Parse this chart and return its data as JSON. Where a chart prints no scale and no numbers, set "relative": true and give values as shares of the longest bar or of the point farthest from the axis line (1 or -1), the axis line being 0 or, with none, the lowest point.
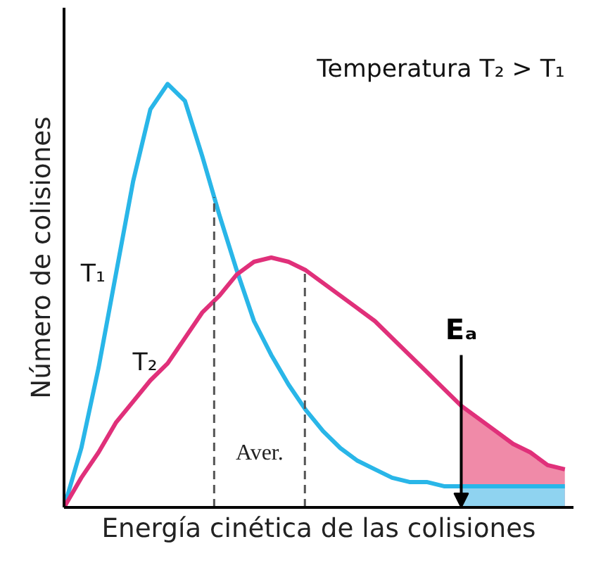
{
  "chart_data": {
    "type": "line",
    "relative": true,
    "xlabel": "Energía cinética de las colisiones",
    "ylabel": "Número de colisiones",
    "categories": [
      null,
      null,
      null,
      null,
      null,
      null,
      null,
      null,
      null,
      null,
      null,
      null,
      null,
      null,
      null,
      null,
      null,
      null,
      null,
      null,
      null,
      null,
      null,
      null,
      null,
      null,
      null,
      null,
      null,
      null
    ],
    "series": [
      {
        "name": "T₁",
        "color": "#29b6e8",
        "values": [
          0,
          0.14,
          0.33,
          0.55,
          0.77,
          0.94,
          1.0,
          0.96,
          0.83,
          0.69,
          0.56,
          0.44,
          0.36,
          0.29,
          0.23,
          0.18,
          0.14,
          0.11,
          0.09,
          0.07,
          0.06,
          0.06,
          0.05,
          0.05,
          0.05,
          0.05,
          0.05,
          0.05,
          0.05,
          0.05
        ]
      },
      {
        "name": "T₂",
        "color": "#e0307a",
        "values": [
          0,
          0.07,
          0.13,
          0.2,
          0.25,
          0.3,
          0.34,
          0.4,
          0.46,
          0.5,
          0.55,
          0.58,
          0.59,
          0.58,
          0.56,
          0.53,
          0.5,
          0.47,
          0.44,
          0.4,
          0.36,
          0.32,
          0.28,
          0.24,
          0.21,
          0.18,
          0.15,
          0.13,
          0.1,
          0.09
        ]
      },
      {
        "type": "area",
        "color": "#f08aa8",
        "values": [
          null,
          null,
          null,
          null,
          null,
          null,
          null,
          null,
          null,
          null,
          null,
          null,
          null,
          null,
          null,
          null,
          null,
          null,
          null,
          null,
          null,
          null,
          null,
          0.24,
          0.21,
          0.18,
          0.15,
          0.13,
          0.1,
          0.09
        ]
      },
      {
        "type": "area",
        "color": "#8fd3f0",
        "values": [
          null,
          null,
          null,
          null,
          null,
          null,
          null,
          null,
          null,
          null,
          null,
          null,
          null,
          null,
          null,
          null,
          null,
          null,
          null,
          null,
          null,
          null,
          null,
          0.05,
          0.05,
          0.05,
          0.05,
          0.05,
          0.05,
          0.05
        ]
      }
    ],
    "annotations": [
      "Temperatura T₂ > T₁",
      "Aver.",
      "Eₐ"
    ]
  }
}
